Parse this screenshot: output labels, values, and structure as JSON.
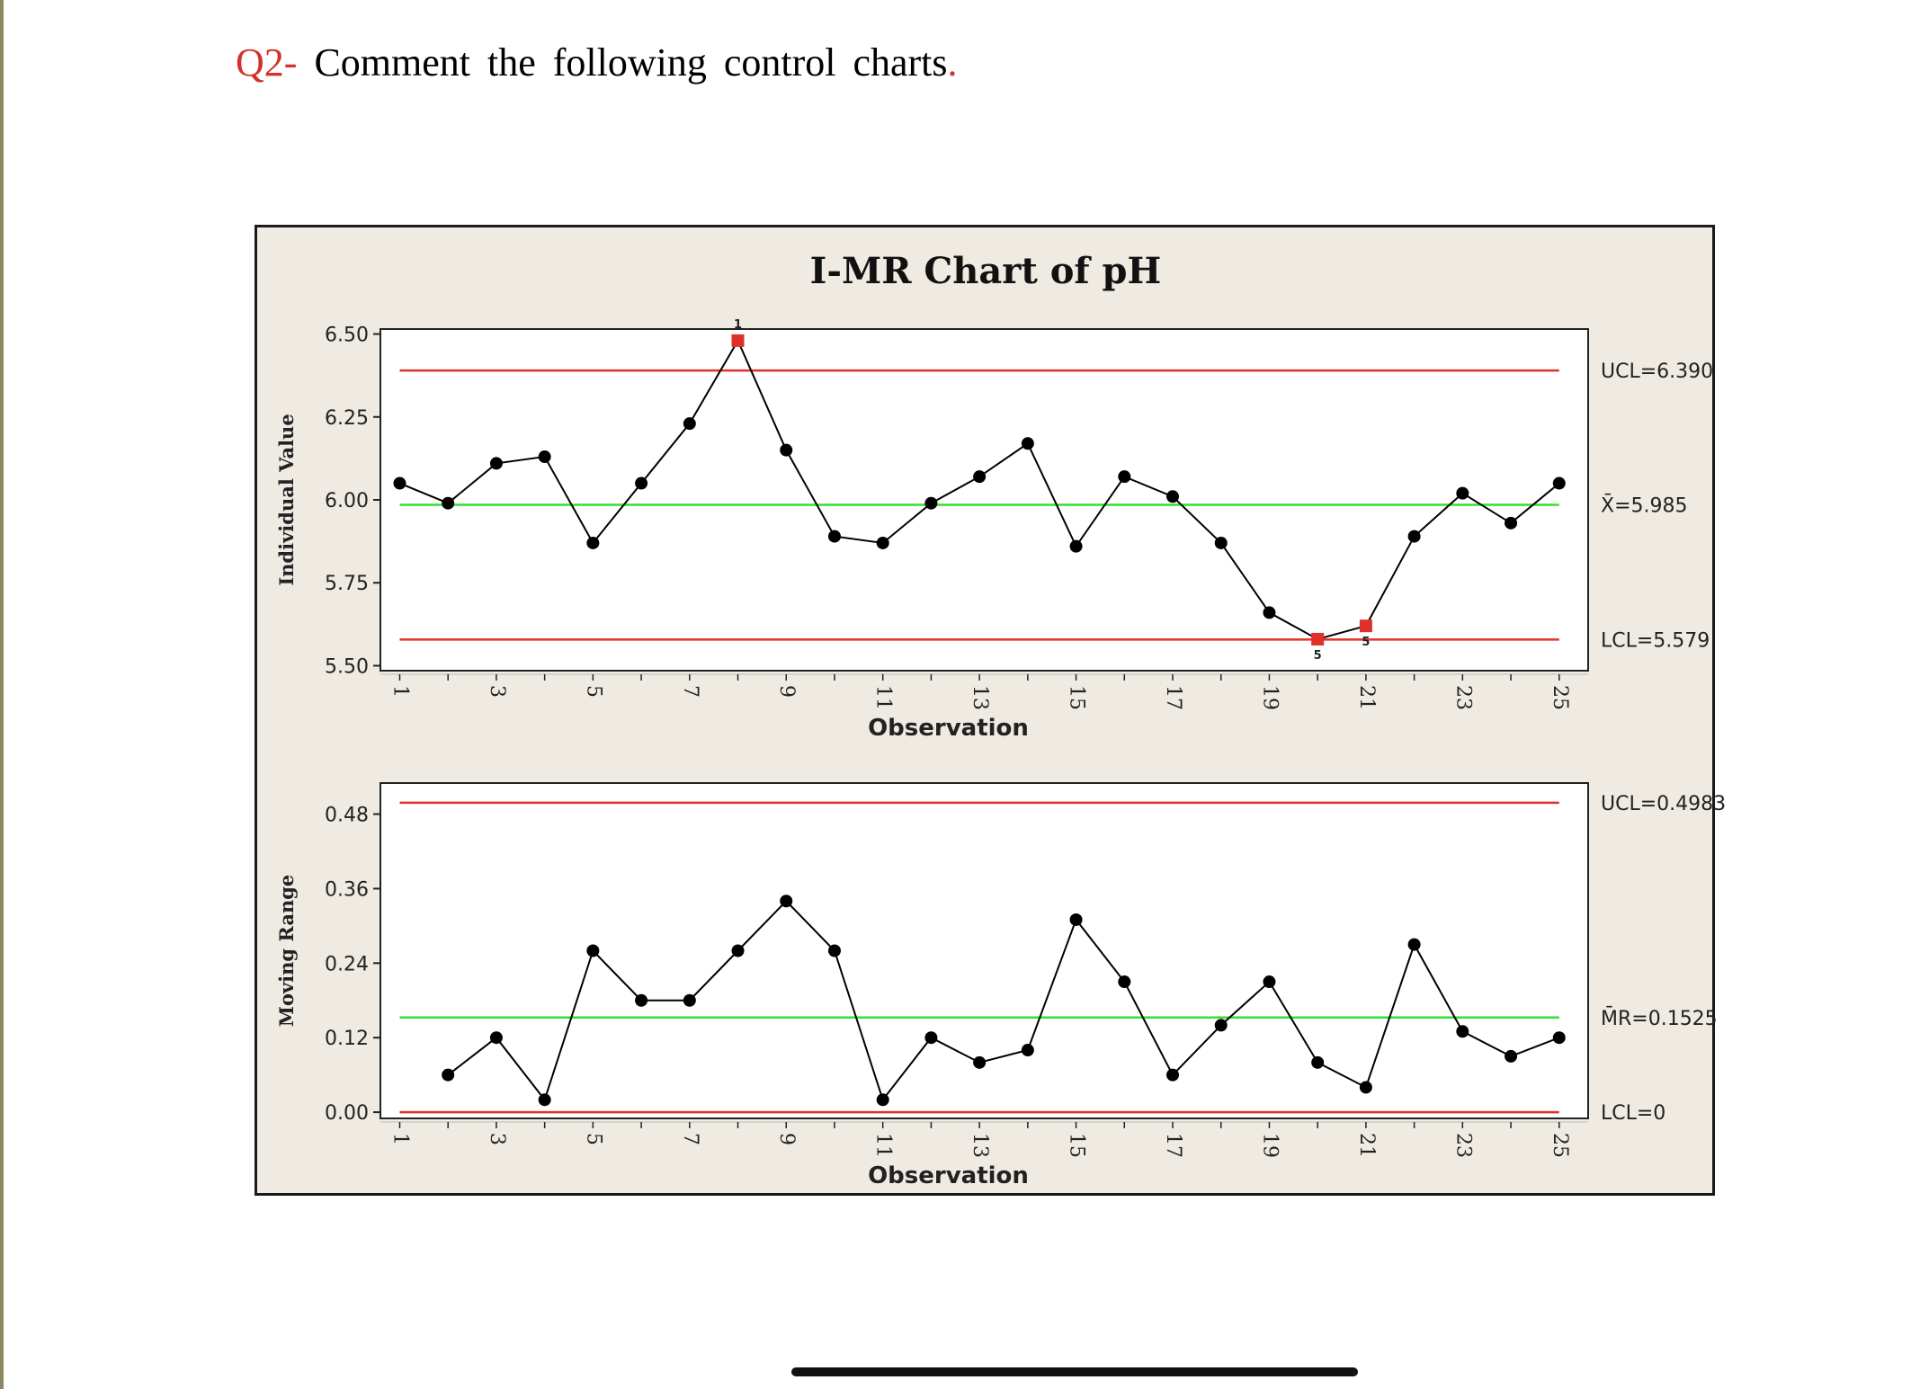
{
  "question": {
    "number": "Q2-",
    "text": "Comment the following control charts",
    "period": "."
  },
  "colors": {
    "limit_line": "#e0302a",
    "center_line": "#33e033",
    "data_line": "#000000",
    "flagged_point": "#e0302a",
    "panel_background": "#efebe3",
    "plot_background": "#ffffff"
  },
  "chart_data": [
    {
      "type": "line",
      "title": "I-MR Chart of pH",
      "ylabel": "Individual Value",
      "xlabel": "Observation",
      "x": [
        1,
        2,
        3,
        4,
        5,
        6,
        7,
        8,
        9,
        10,
        11,
        12,
        13,
        14,
        15,
        16,
        17,
        18,
        19,
        20,
        21,
        22,
        23,
        24,
        25
      ],
      "values": [
        6.05,
        5.99,
        6.11,
        6.13,
        5.87,
        6.05,
        6.23,
        6.48,
        6.15,
        5.89,
        5.87,
        5.99,
        6.07,
        6.17,
        5.86,
        6.07,
        6.01,
        5.87,
        5.66,
        5.58,
        5.62,
        5.89,
        6.02,
        5.93,
        6.05
      ],
      "flagged": [
        {
          "x": 8,
          "label": "1"
        },
        {
          "x": 20,
          "label": "5"
        },
        {
          "x": 21,
          "label": "5"
        }
      ],
      "ylim": [
        5.485,
        6.515
      ],
      "xlim": [
        0.6,
        25.6
      ],
      "yticks": [
        5.5,
        5.75,
        6.0,
        6.25,
        6.5
      ],
      "ytick_labels": [
        "5.50",
        "5.75",
        "6.00",
        "6.25",
        "6.50"
      ],
      "xticks": [
        1,
        3,
        5,
        7,
        9,
        11,
        13,
        15,
        17,
        19,
        21,
        23,
        25
      ],
      "xtick_labels": [
        "1",
        "3",
        "5",
        "7",
        "9",
        "11",
        "13",
        "15",
        "17",
        "19",
        "21",
        "23",
        "25"
      ],
      "control_limits": {
        "ucl": 6.39,
        "center": 5.985,
        "lcl": 5.579,
        "ucl_label": "UCL=6.390",
        "center_label": "X̄=5.985",
        "lcl_label": "LCL=5.579"
      }
    },
    {
      "type": "line",
      "title": "",
      "ylabel": "Moving Range",
      "xlabel": "Observation",
      "x": [
        2,
        3,
        4,
        5,
        6,
        7,
        8,
        9,
        10,
        11,
        12,
        13,
        14,
        15,
        16,
        17,
        18,
        19,
        20,
        21,
        22,
        23,
        24,
        25
      ],
      "values": [
        0.06,
        0.12,
        0.02,
        0.26,
        0.18,
        0.18,
        0.26,
        0.34,
        0.26,
        0.02,
        0.12,
        0.08,
        0.1,
        0.31,
        0.21,
        0.06,
        0.14,
        0.21,
        0.08,
        0.04,
        0.27,
        0.13,
        0.09,
        0.12
      ],
      "flagged": [],
      "ylim": [
        -0.01,
        0.53
      ],
      "xlim": [
        0.6,
        25.6
      ],
      "yticks": [
        0.0,
        0.12,
        0.24,
        0.36,
        0.48
      ],
      "ytick_labels": [
        "0.00",
        "0.12",
        "0.24",
        "0.36",
        "0.48"
      ],
      "xticks": [
        1,
        3,
        5,
        7,
        9,
        11,
        13,
        15,
        17,
        19,
        21,
        23,
        25
      ],
      "xtick_labels": [
        "1",
        "3",
        "5",
        "7",
        "9",
        "11",
        "13",
        "15",
        "17",
        "19",
        "21",
        "23",
        "25"
      ],
      "control_limits": {
        "ucl": 0.4983,
        "center": 0.1525,
        "lcl": 0,
        "ucl_label": "UCL=0.4983",
        "center_label": "M̄R=0.1525",
        "lcl_label": "LCL=0"
      }
    }
  ]
}
